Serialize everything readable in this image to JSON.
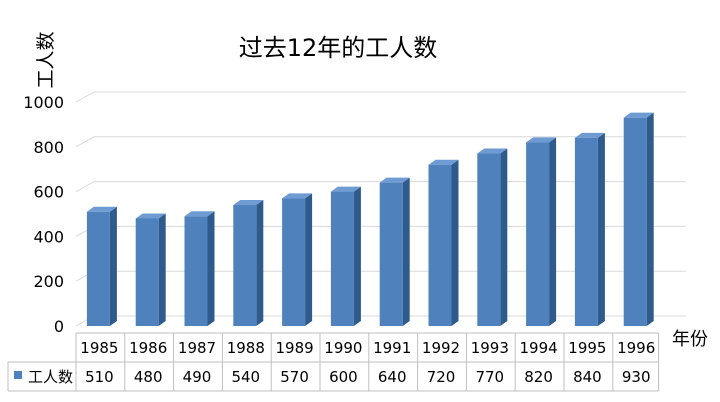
{
  "chart_data": {
    "type": "bar",
    "title": "过去12年的工人数",
    "ylabel": "工人数",
    "xlabel": "年份",
    "categories": [
      "1985",
      "1986",
      "1987",
      "1988",
      "1989",
      "1990",
      "1991",
      "1992",
      "1993",
      "1994",
      "1995",
      "1996"
    ],
    "series": [
      {
        "name": "工人数",
        "values": [
          510,
          480,
          490,
          540,
          570,
          600,
          640,
          720,
          770,
          820,
          840,
          930
        ]
      }
    ],
    "ylim": [
      0,
      1000
    ],
    "yticks": [
      "0",
      "200",
      "400",
      "600",
      "800",
      "1000"
    ],
    "grid": true,
    "legend": "data-table-left",
    "bar_style": "3d-column",
    "colors": {
      "bar_front": "#4f81bd",
      "bar_top": "#6d9bd2",
      "bar_side": "#2f5a8c",
      "legend_key": "#4f81bd",
      "gridline": "#d9d9d9",
      "table_border": "#bfbfbf"
    }
  }
}
